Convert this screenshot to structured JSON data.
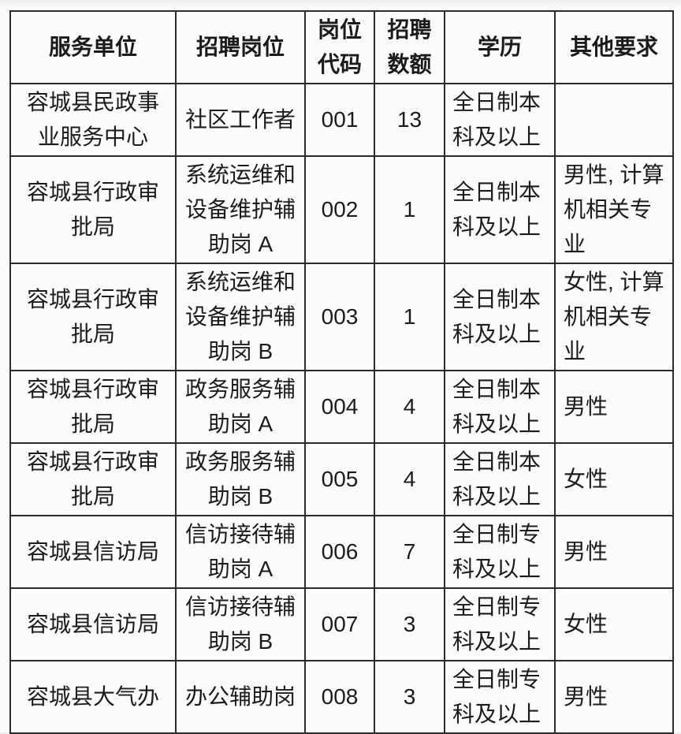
{
  "page": {
    "background_color": "#fcfcfc",
    "border_color": "#2b2b2b",
    "text_color": "#1b1b1b"
  },
  "table": {
    "headers": [
      {
        "id": "unit",
        "label": "服务单位"
      },
      {
        "id": "position",
        "label": "招聘岗位"
      },
      {
        "id": "code",
        "label": "岗位\n代码"
      },
      {
        "id": "quota",
        "label": "招聘\n数额"
      },
      {
        "id": "education",
        "label": "学历"
      },
      {
        "id": "other",
        "label": "其他要求"
      }
    ],
    "rows": [
      {
        "unit": "容城县民政事\n业服务中心",
        "position": "社区工作者",
        "code": "001",
        "quota": "13",
        "education": "全日制本\n科及以上",
        "other": ""
      },
      {
        "unit": "容城县行政审\n批局",
        "position": "系统运维和\n设备维护辅\n助岗 A",
        "code": "002",
        "quota": "1",
        "education": "全日制本\n科及以上",
        "other": "男性, 计算\n机相关专\n业"
      },
      {
        "unit": "容城县行政审\n批局",
        "position": "系统运维和\n设备维护辅\n助岗 B",
        "code": "003",
        "quota": "1",
        "education": "全日制本\n科及以上",
        "other": "女性, 计算\n机相关专\n业"
      },
      {
        "unit": "容城县行政审\n批局",
        "position": "政务服务辅\n助岗 A",
        "code": "004",
        "quota": "4",
        "education": "全日制本\n科及以上",
        "other": "男性"
      },
      {
        "unit": "容城县行政审\n批局",
        "position": "政务服务辅\n助岗 B",
        "code": "005",
        "quota": "4",
        "education": "全日制本\n科及以上",
        "other": "女性"
      },
      {
        "unit": "容城县信访局",
        "position": "信访接待辅\n助岗 A",
        "code": "006",
        "quota": "7",
        "education": "全日制专\n科及以上",
        "other": "男性"
      },
      {
        "unit": "容城县信访局",
        "position": "信访接待辅\n助岗 B",
        "code": "007",
        "quota": "3",
        "education": "全日制专\n科及以上",
        "other": "女性"
      },
      {
        "unit": "容城县大气办",
        "position": "办公辅助岗",
        "code": "008",
        "quota": "3",
        "education": "全日制专\n科及以上",
        "other": "男性"
      }
    ]
  }
}
